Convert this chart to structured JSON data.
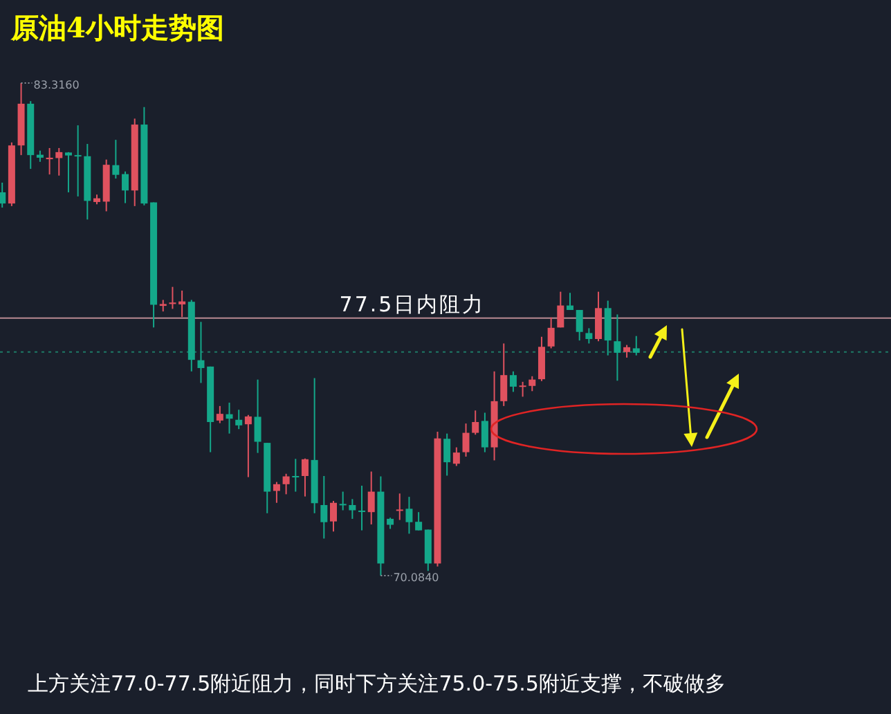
{
  "chart_data": {
    "type": "candlestick",
    "title": "原油4小时走势图",
    "categories": [
      null,
      null,
      null,
      null,
      null,
      null,
      null,
      null,
      null,
      null,
      null,
      null,
      null,
      null,
      null,
      null,
      null,
      null,
      null,
      null,
      null,
      null,
      null,
      null,
      null,
      null,
      null,
      null,
      null,
      null,
      null,
      null,
      null,
      null,
      null,
      null,
      null,
      null,
      null,
      null,
      null,
      null,
      null,
      null,
      null,
      null,
      null,
      null,
      null,
      null,
      null,
      null,
      null,
      null,
      null,
      null,
      null,
      null,
      null,
      null,
      null,
      null,
      null,
      null,
      null,
      null,
      null,
      null
    ],
    "ohlc": [
      [
        80.38,
        80.64,
        79.97,
        80.08
      ],
      [
        80.08,
        81.72,
        80.01,
        81.64
      ],
      [
        81.64,
        83.316,
        81.38,
        82.76
      ],
      [
        82.76,
        82.83,
        81.01,
        81.38
      ],
      [
        81.39,
        81.5,
        81.2,
        81.31
      ],
      [
        81.27,
        81.57,
        80.86,
        81.31
      ],
      [
        81.3,
        81.57,
        80.83,
        81.46
      ],
      [
        81.45,
        81.46,
        80.38,
        81.37
      ],
      [
        81.38,
        82.18,
        80.27,
        81.35
      ],
      [
        81.35,
        81.68,
        79.65,
        80.15
      ],
      [
        80.12,
        80.32,
        80.06,
        80.22
      ],
      [
        80.13,
        81.26,
        79.87,
        81.12
      ],
      [
        81.11,
        81.79,
        80.75,
        80.85
      ],
      [
        80.87,
        80.94,
        80.09,
        80.43
      ],
      [
        80.43,
        82.36,
        80.01,
        82.2
      ],
      [
        82.2,
        82.67,
        80.03,
        80.08
      ],
      [
        80.11,
        80.11,
        76.75,
        77.36
      ],
      [
        77.33,
        77.49,
        77.18,
        77.38
      ],
      [
        77.38,
        77.84,
        77.25,
        77.42
      ],
      [
        77.37,
        77.74,
        77.03,
        77.45
      ],
      [
        77.44,
        77.49,
        75.57,
        75.88
      ],
      [
        75.87,
        76.9,
        75.26,
        75.66
      ],
      [
        75.7,
        75.7,
        73.4,
        74.21
      ],
      [
        74.25,
        74.64,
        74.18,
        74.43
      ],
      [
        74.42,
        74.73,
        73.9,
        74.3
      ],
      [
        74.27,
        74.54,
        74.02,
        74.12
      ],
      [
        74.15,
        74.4,
        72.73,
        74.36
      ],
      [
        74.35,
        75.35,
        73.38,
        73.68
      ],
      [
        73.65,
        73.65,
        71.76,
        72.34
      ],
      [
        72.36,
        72.6,
        72.04,
        72.54
      ],
      [
        72.54,
        72.82,
        72.27,
        72.75
      ],
      [
        72.76,
        73.22,
        72.34,
        72.74
      ],
      [
        72.76,
        73.23,
        72.21,
        73.21
      ],
      [
        73.19,
        75.39,
        71.76,
        72.03
      ],
      [
        71.98,
        72.76,
        71.08,
        71.52
      ],
      [
        71.54,
        72.09,
        71.27,
        72.04
      ],
      [
        72.01,
        72.34,
        71.84,
        71.99
      ],
      [
        71.98,
        72.14,
        71.61,
        71.84
      ],
      [
        71.83,
        72.5,
        71.3,
        71.82
      ],
      [
        71.79,
        72.88,
        71.46,
        72.34
      ],
      [
        72.34,
        72.75,
        70.084,
        70.41
      ],
      [
        71.61,
        71.64,
        71.34,
        71.45
      ],
      [
        71.83,
        72.29,
        71.58,
        71.86
      ],
      [
        71.88,
        72.2,
        71.21,
        71.52
      ],
      [
        71.53,
        71.79,
        71.3,
        71.3
      ],
      [
        71.32,
        71.32,
        70.21,
        70.41
      ],
      [
        70.41,
        73.95,
        70.33,
        73.77
      ],
      [
        73.76,
        73.9,
        72.77,
        73.13
      ],
      [
        73.09,
        73.53,
        73.03,
        73.39
      ],
      [
        73.4,
        74.17,
        73.28,
        73.92
      ],
      [
        73.92,
        74.52,
        73.87,
        74.21
      ],
      [
        74.24,
        74.46,
        73.4,
        73.53
      ],
      [
        73.53,
        75.57,
        73.18,
        74.77
      ],
      [
        74.77,
        76.32,
        74.64,
        75.47
      ],
      [
        75.47,
        75.57,
        75.02,
        75.16
      ],
      [
        75.18,
        75.29,
        74.89,
        75.19
      ],
      [
        75.18,
        75.44,
        75.04,
        75.35
      ],
      [
        75.36,
        76.5,
        75.31,
        76.23
      ],
      [
        76.24,
        77.02,
        76.19,
        76.74
      ],
      [
        76.75,
        77.71,
        76.75,
        77.34
      ],
      [
        77.34,
        77.68,
        77.22,
        77.22
      ],
      [
        77.22,
        77.22,
        76.4,
        76.63
      ],
      [
        76.6,
        76.73,
        76.32,
        76.44
      ],
      [
        76.44,
        77.71,
        76.38,
        77.27
      ],
      [
        77.27,
        77.47,
        76.0,
        76.4
      ],
      [
        76.38,
        77.1,
        75.32,
        76.07
      ],
      [
        76.09,
        76.28,
        75.94,
        76.22
      ],
      [
        76.19,
        76.52,
        76.0,
        76.07
      ]
    ],
    "colors": [
      "#14a88a",
      "#e0525f",
      "#e0525f",
      "#14a88a",
      "#14a88a",
      "#e0525f",
      "#e0525f",
      "#14a88a",
      "#14a88a",
      "#14a88a",
      "#e0525f",
      "#e0525f",
      "#14a88a",
      "#14a88a",
      "#e0525f",
      "#14a88a",
      "#14a88a",
      "#e0525f",
      "#e0525f",
      "#e0525f",
      "#14a88a",
      "#14a88a",
      "#14a88a",
      "#e0525f",
      "#14a88a",
      "#14a88a",
      "#e0525f",
      "#14a88a",
      "#14a88a",
      "#e0525f",
      "#e0525f",
      "#14a88a",
      "#e0525f",
      "#14a88a",
      "#14a88a",
      "#e0525f",
      "#14a88a",
      "#14a88a",
      "#14a88a",
      "#e0525f",
      "#14a88a",
      "#14a88a",
      "#e0525f",
      "#14a88a",
      "#14a88a",
      "#14a88a",
      "#e0525f",
      "#14a88a",
      "#e0525f",
      "#e0525f",
      "#e0525f",
      "#14a88a",
      "#e0525f",
      "#e0525f",
      "#14a88a",
      "#e0525f",
      "#e0525f",
      "#e0525f",
      "#e0525f",
      "#e0525f",
      "#14a88a",
      "#14a88a",
      "#14a88a",
      "#e0525f",
      "#14a88a",
      "#14a88a",
      "#e0525f",
      "#14a88a"
    ],
    "ref_lines": [
      {
        "axis": "y",
        "value": 77.0,
        "label": "77.5日内阻力",
        "color": "#b98a92"
      },
      {
        "axis": "y",
        "value": 76.09,
        "color": "#1e7a66",
        "line_style": "dotted"
      }
    ],
    "annotations": [
      "83.3160",
      "70.0840",
      "上方关注77.0-77.5附近阻力，同时下方关注75.0-75.5附近支撑，不破做多"
    ]
  }
}
